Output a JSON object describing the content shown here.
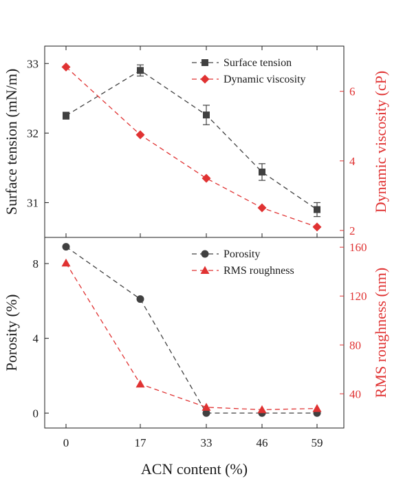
{
  "chart_data": [
    {
      "type": "line",
      "panel": "top",
      "x": [
        0,
        17,
        33,
        46,
        59
      ],
      "x_tick_labels": [
        "0",
        "17",
        "33",
        "46",
        "59"
      ],
      "ylabel_left": "Surface tension (mN/m)",
      "ylabel_right": "Dynamic viscosity (cP)",
      "ylim_left": [
        30.5,
        33.25
      ],
      "ylim_right": [
        1.8,
        7.3
      ],
      "yticks_left": [
        "31",
        "32",
        "33"
      ],
      "yticks_right": [
        "2",
        "4",
        "6"
      ],
      "legend_position": "top-right",
      "grid": false,
      "series": [
        {
          "name": "Surface tension",
          "axis": "left",
          "marker": "square",
          "color": "#404040",
          "values": [
            32.25,
            32.9,
            32.26,
            31.44,
            30.9
          ],
          "error": [
            0.05,
            0.08,
            0.14,
            0.12,
            0.1
          ]
        },
        {
          "name": "Dynamic viscosity",
          "axis": "right",
          "marker": "diamond",
          "color": "#e03232",
          "values": [
            6.7,
            4.75,
            3.5,
            2.65,
            2.1
          ]
        }
      ]
    },
    {
      "type": "line",
      "panel": "bottom",
      "x": [
        0,
        17,
        33,
        46,
        59
      ],
      "x_tick_labels": [
        "0",
        "17",
        "33",
        "46",
        "59"
      ],
      "xlabel": "ACN content (%)",
      "ylabel_left": "Porosity (%)",
      "ylabel_right": "RMS roughness (nm)",
      "ylim_left": [
        -0.8,
        9.4
      ],
      "ylim_right": [
        12,
        168
      ],
      "yticks_left": [
        "0",
        "4",
        "8"
      ],
      "yticks_right": [
        "40",
        "80",
        "120",
        "160"
      ],
      "legend_position": "top-right",
      "grid": false,
      "series": [
        {
          "name": "Porosity",
          "axis": "left",
          "marker": "circle",
          "color": "#404040",
          "values": [
            8.9,
            6.1,
            0.0,
            0.0,
            0.0
          ]
        },
        {
          "name": "RMS roughness",
          "axis": "right",
          "marker": "triangle",
          "color": "#e03232",
          "values": [
            147,
            48,
            29,
            27,
            28
          ]
        }
      ]
    }
  ]
}
